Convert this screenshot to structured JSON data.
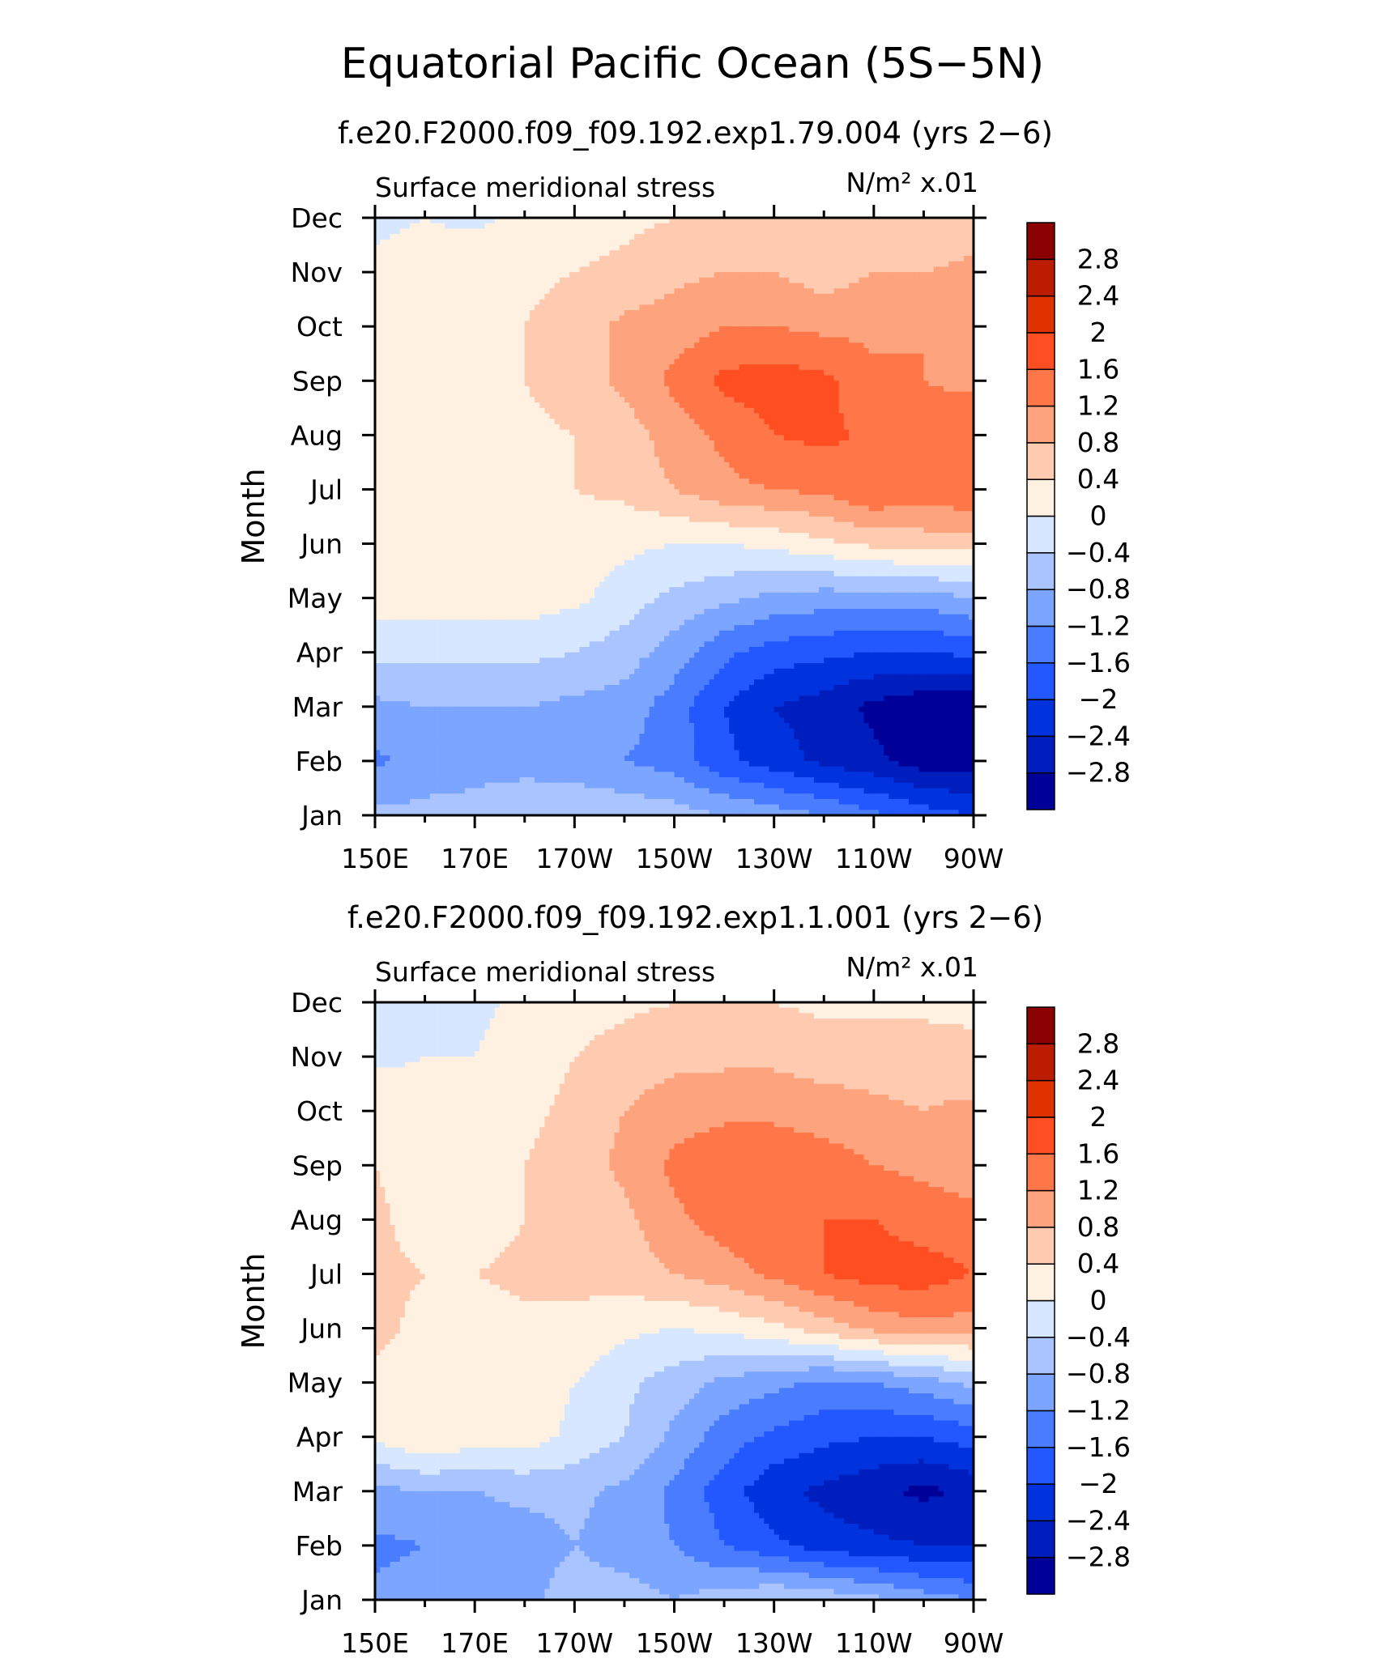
{
  "page": {
    "title": "Equatorial Pacific Ocean (5S−5N)"
  },
  "colors": {
    "levels": [
      "#000099",
      "#001ebe",
      "#0033dd",
      "#2357ff",
      "#4a7cff",
      "#7ba5ff",
      "#a9c4ff",
      "#d6e7ff",
      "#fff1e1",
      "#fecab0",
      "#fda37d",
      "#ff7748",
      "#ff4f22",
      "#e03200",
      "#bc1c00",
      "#8b0000"
    ],
    "frame": "#000000"
  },
  "chart_data": [
    {
      "type": "heatmap",
      "subtitle": "f.e20.F2000.f09_f09.192.exp1.79.004 (yrs 2−6)",
      "variable_label": "Surface meridional stress",
      "units_label": "N/m² x.01",
      "ylabel": "Month",
      "xlabel": "",
      "x_ticks": [
        "150E",
        "170E",
        "170W",
        "150W",
        "130W",
        "110W",
        "90W"
      ],
      "y_ticks": [
        "Jan",
        "Feb",
        "Mar",
        "Apr",
        "May",
        "Jun",
        "Jul",
        "Aug",
        "Sep",
        "Oct",
        "Nov",
        "Dec"
      ],
      "x_range": [
        "150E",
        "90W"
      ],
      "y_range": [
        "Jan",
        "Dec"
      ],
      "colorbar_labels": [
        "2.8",
        "2.4",
        "2",
        "1.6",
        "1.2",
        "0.8",
        "0.4",
        "0",
        "−0.4",
        "−0.8",
        "−1.2",
        "−1.6",
        "−2",
        "−2.4",
        "−2.8"
      ],
      "colorbar_bounds": [
        -3.2,
        3.2
      ],
      "longitudes_deg_east": [
        150,
        160,
        170,
        180,
        190,
        200,
        210,
        220,
        230,
        240,
        250,
        260,
        270
      ],
      "z_by_month": [
        [
          -0.7,
          -0.7,
          -0.7,
          -0.6,
          -0.5,
          -0.5,
          -0.6,
          -0.8,
          -1.0,
          -1.2,
          -1.5,
          -1.8,
          -2.0
        ],
        [
          -1.3,
          -1.0,
          -0.9,
          -0.9,
          -1.0,
          -1.2,
          -1.4,
          -1.9,
          -2.2,
          -2.5,
          -2.7,
          -3.0,
          -3.0
        ],
        [
          -0.9,
          -0.8,
          -0.8,
          -0.8,
          -0.9,
          -1.0,
          -1.4,
          -2.0,
          -2.4,
          -2.6,
          -2.9,
          -3.1,
          -3.1
        ],
        [
          -0.3,
          -0.3,
          -0.3,
          -0.3,
          -0.4,
          -0.6,
          -1.0,
          -1.5,
          -1.8,
          -1.9,
          -2.0,
          -2.0,
          -1.9
        ],
        [
          0.2,
          0.2,
          0.2,
          0.2,
          0.1,
          -0.2,
          -0.5,
          -0.7,
          -0.9,
          -1.0,
          -1.0,
          -1.0,
          -0.8
        ],
        [
          0.2,
          0.2,
          0.2,
          0.2,
          0.2,
          0.1,
          0.0,
          0.0,
          0.1,
          0.3,
          0.5,
          0.6,
          0.6
        ],
        [
          0.4,
          0.2,
          0.2,
          0.3,
          0.4,
          0.5,
          0.8,
          1.1,
          1.2,
          1.3,
          1.6,
          1.4,
          1.6
        ],
        [
          0.4,
          0.2,
          0.2,
          0.3,
          0.4,
          0.6,
          1.0,
          1.3,
          1.6,
          1.7,
          1.5,
          1.4,
          1.5
        ],
        [
          0.3,
          0.2,
          0.2,
          0.4,
          0.6,
          0.9,
          1.3,
          1.7,
          1.8,
          1.7,
          1.3,
          1.2,
          1.1
        ],
        [
          0.2,
          0.2,
          0.3,
          0.4,
          0.6,
          0.9,
          1.0,
          1.2,
          1.2,
          1.1,
          1.1,
          1.2,
          1.0
        ],
        [
          0.1,
          0.2,
          0.3,
          0.3,
          0.4,
          0.5,
          0.7,
          0.8,
          0.8,
          0.6,
          0.8,
          0.8,
          0.9
        ],
        [
          -0.1,
          0.0,
          -0.1,
          0.1,
          0.2,
          0.3,
          0.4,
          0.5,
          0.5,
          0.4,
          0.5,
          0.4,
          0.6
        ]
      ]
    },
    {
      "type": "heatmap",
      "subtitle": "f.e20.F2000.f09_f09.192.exp1.1.001 (yrs 2−6)",
      "variable_label": "Surface meridional stress",
      "units_label": "N/m² x.01",
      "ylabel": "Month",
      "xlabel": "",
      "x_ticks": [
        "150E",
        "170E",
        "170W",
        "150W",
        "130W",
        "110W",
        "90W"
      ],
      "y_ticks": [
        "Jan",
        "Feb",
        "Mar",
        "Apr",
        "May",
        "Jun",
        "Jul",
        "Aug",
        "Sep",
        "Oct",
        "Nov",
        "Dec"
      ],
      "x_range": [
        "150E",
        "90W"
      ],
      "y_range": [
        "Jan",
        "Dec"
      ],
      "colorbar_labels": [
        "2.8",
        "2.4",
        "2",
        "1.6",
        "1.2",
        "0.8",
        "0.4",
        "0",
        "−0.4",
        "−0.8",
        "−1.2",
        "−1.6",
        "−2",
        "−2.4",
        "−2.8"
      ],
      "colorbar_bounds": [
        -3.2,
        3.2
      ],
      "longitudes_deg_east": [
        150,
        160,
        170,
        180,
        190,
        200,
        210,
        220,
        230,
        240,
        250,
        260,
        270
      ],
      "z_by_month": [
        [
          -1.1,
          -1.0,
          -0.9,
          -0.9,
          -0.6,
          -0.6,
          -0.8,
          -0.6,
          -0.4,
          -0.5,
          -0.7,
          -1.0,
          -1.2
        ],
        [
          -1.3,
          -1.2,
          -1.1,
          -1.0,
          -0.8,
          -1.0,
          -1.2,
          -1.6,
          -1.9,
          -2.2,
          -2.3,
          -2.4,
          -2.4
        ],
        [
          -0.9,
          -0.8,
          -0.8,
          -0.7,
          -0.7,
          -0.9,
          -1.3,
          -1.8,
          -2.3,
          -2.5,
          -2.7,
          -2.9,
          -2.7
        ],
        [
          0.1,
          0.4,
          0.2,
          0.2,
          -0.1,
          -0.4,
          -0.9,
          -1.4,
          -1.7,
          -1.9,
          -2.0,
          -2.0,
          -1.8
        ],
        [
          0.3,
          0.3,
          0.3,
          0.2,
          0.0,
          -0.3,
          -0.6,
          -0.9,
          -1.1,
          -1.3,
          -1.2,
          -1.0,
          -0.7
        ],
        [
          0.5,
          0.3,
          0.2,
          0.3,
          0.3,
          0.1,
          0.0,
          0.1,
          0.3,
          0.6,
          0.9,
          1.1,
          1.0
        ],
        [
          0.5,
          0.4,
          0.4,
          0.5,
          0.5,
          0.6,
          0.8,
          1.0,
          1.3,
          1.6,
          1.8,
          1.8,
          1.6
        ],
        [
          0.5,
          0.2,
          0.2,
          0.4,
          0.5,
          0.7,
          1.1,
          1.4,
          1.6,
          1.6,
          1.6,
          1.4,
          1.3
        ],
        [
          0.4,
          0.2,
          0.2,
          0.4,
          0.6,
          0.9,
          1.3,
          1.5,
          1.5,
          1.4,
          1.2,
          1.1,
          1.0
        ],
        [
          0.3,
          0.2,
          0.2,
          0.3,
          0.5,
          0.8,
          1.0,
          1.1,
          1.1,
          1.0,
          0.9,
          0.8,
          0.9
        ],
        [
          -0.1,
          0.0,
          0.0,
          0.2,
          0.4,
          0.6,
          0.7,
          0.7,
          0.7,
          0.6,
          0.6,
          0.6,
          0.5
        ],
        [
          -0.3,
          -0.2,
          -0.1,
          0.1,
          0.2,
          0.3,
          0.4,
          0.4,
          0.4,
          0.3,
          0.3,
          0.3,
          0.3
        ]
      ]
    }
  ]
}
